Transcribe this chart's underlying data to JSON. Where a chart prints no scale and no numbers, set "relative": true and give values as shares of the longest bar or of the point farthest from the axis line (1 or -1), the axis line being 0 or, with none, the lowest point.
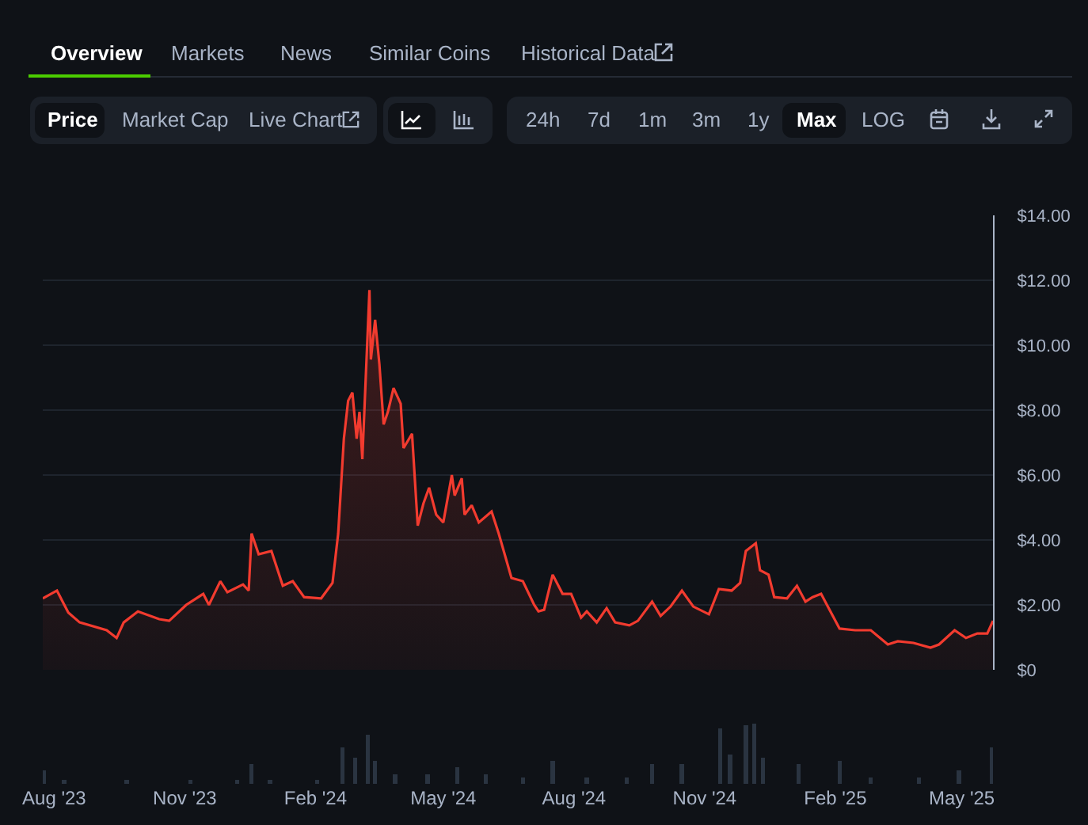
{
  "chart_data": [
    {
      "type": "area",
      "annotations": [
        "Overview",
        "Markets",
        "News",
        "Similar Coins",
        "Historical Data",
        "Price",
        "Market Cap",
        "Live Chart",
        "24h",
        "7d",
        "1m",
        "3m",
        "1y",
        "Max",
        "LOG"
      ],
      "x": [
        "2023-07-24",
        "2023-08-03",
        "2023-08-11",
        "2023-08-19",
        "2023-09-07",
        "2023-09-14",
        "2023-09-19",
        "2023-09-29",
        "2023-10-14",
        "2023-10-21",
        "2023-11-02",
        "2023-11-14",
        "2023-11-18",
        "2023-11-26",
        "2023-12-01",
        "2023-12-12",
        "2023-12-16",
        "2023-12-18",
        "2023-12-23",
        "2024-01-01",
        "2024-01-09",
        "2024-01-16",
        "2024-01-24",
        "2024-02-05",
        "2024-02-13",
        "2024-02-17",
        "2024-02-21",
        "2024-02-24",
        "2024-02-27",
        "2024-03-01",
        "2024-03-03",
        "2024-03-05",
        "2024-03-10",
        "2024-03-11",
        "2024-03-14",
        "2024-03-17",
        "2024-03-20",
        "2024-03-23",
        "2024-03-27",
        "2024-04-01",
        "2024-04-03",
        "2024-04-09",
        "2024-04-13",
        "2024-04-17",
        "2024-04-21",
        "2024-04-26",
        "2024-05-01",
        "2024-05-07",
        "2024-05-09",
        "2024-05-14",
        "2024-05-16",
        "2024-05-21",
        "2024-05-26",
        "2024-06-04",
        "2024-06-09",
        "2024-06-18",
        "2024-06-26",
        "2024-07-04",
        "2024-07-07",
        "2024-07-11",
        "2024-07-17",
        "2024-07-24",
        "2024-07-30",
        "2024-08-06",
        "2024-08-10",
        "2024-08-17",
        "2024-08-24",
        "2024-08-30",
        "2024-09-09",
        "2024-09-15",
        "2024-09-25",
        "2024-10-01",
        "2024-10-08",
        "2024-10-16",
        "2024-10-24",
        "2024-11-04",
        "2024-11-11",
        "2024-11-20",
        "2024-11-26",
        "2024-11-30",
        "2024-12-07",
        "2024-12-10",
        "2024-12-16",
        "2024-12-20",
        "2024-12-29",
        "2025-01-05",
        "2025-01-11",
        "2025-01-16",
        "2025-01-22",
        "2025-01-29",
        "2025-02-04",
        "2025-02-15",
        "2025-02-26",
        "2025-03-10",
        "2025-03-17",
        "2025-03-28",
        "2025-04-09",
        "2025-04-15",
        "2025-04-26",
        "2025-05-04",
        "2025-05-12",
        "2025-05-19",
        "2025-05-23"
      ],
      "color": "#f23b2f",
      "values": [
        2.2,
        2.44,
        1.76,
        1.46,
        1.22,
        0.98,
        1.46,
        1.8,
        1.56,
        1.51,
        2.0,
        2.34,
        2.0,
        2.73,
        2.39,
        2.63,
        2.44,
        4.2,
        3.56,
        3.66,
        2.59,
        2.73,
        2.24,
        2.2,
        2.68,
        4.2,
        7.12,
        8.29,
        8.54,
        7.12,
        7.95,
        6.49,
        11.7,
        9.56,
        10.78,
        9.41,
        7.56,
        7.95,
        8.68,
        8.2,
        6.83,
        7.27,
        4.44,
        5.12,
        5.61,
        4.78,
        4.54,
        6.0,
        5.37,
        5.9,
        4.78,
        5.07,
        4.54,
        4.88,
        4.2,
        2.83,
        2.73,
        2.0,
        1.8,
        1.85,
        2.93,
        2.34,
        2.34,
        1.61,
        1.8,
        1.46,
        1.9,
        1.46,
        1.37,
        1.51,
        2.1,
        1.66,
        1.95,
        2.44,
        1.95,
        1.71,
        2.49,
        2.44,
        2.68,
        3.66,
        3.9,
        3.07,
        2.93,
        2.24,
        2.2,
        2.59,
        2.1,
        2.24,
        2.34,
        1.76,
        1.27,
        1.22,
        1.22,
        0.78,
        0.88,
        0.83,
        0.68,
        0.78,
        1.22,
        0.98,
        1.12,
        1.12,
        1.51
      ],
      "xlim": [
        "2023-07-24",
        "2025-05-23"
      ],
      "ylim": [
        0,
        14
      ],
      "yticks": [
        {
          "value": 0,
          "label": "$0"
        },
        {
          "value": 2,
          "label": "$2.00"
        },
        {
          "value": 4,
          "label": "$4.00"
        },
        {
          "value": 6,
          "label": "$6.00"
        },
        {
          "value": 8,
          "label": "$8.00"
        },
        {
          "value": 10,
          "label": "$10.00"
        },
        {
          "value": 12,
          "label": "$12.00"
        },
        {
          "value": 14,
          "label": "$14.00"
        }
      ],
      "grid": "y",
      "tick_labels": "y"
    },
    {
      "type": "bar",
      "relative": true,
      "color": "#2a3441",
      "x": [
        "2023-07-25",
        "2023-08-08",
        "2023-09-21",
        "2023-11-05",
        "2023-12-08",
        "2023-12-18",
        "2023-12-31",
        "2024-02-02",
        "2024-02-20",
        "2024-02-29",
        "2024-03-09",
        "2024-03-14",
        "2024-03-28",
        "2024-04-20",
        "2024-05-11",
        "2024-05-31",
        "2024-06-26",
        "2024-07-17",
        "2024-08-10",
        "2024-09-07",
        "2024-09-25",
        "2024-10-16",
        "2024-11-12",
        "2024-11-19",
        "2024-11-30",
        "2024-12-06",
        "2024-12-12",
        "2025-01-06",
        "2025-02-04",
        "2025-02-26",
        "2025-04-01",
        "2025-04-29",
        "2025-05-22"
      ],
      "values": [
        0.22,
        0.06,
        0.06,
        0.06,
        0.06,
        0.33,
        0.06,
        0.06,
        0.6,
        0.43,
        0.82,
        0.38,
        0.16,
        0.16,
        0.27,
        0.16,
        0.11,
        0.38,
        0.11,
        0.11,
        0.33,
        0.33,
        0.92,
        0.49,
        0.98,
        1,
        0.43,
        0.33,
        0.38,
        0.11,
        0.11,
        0.22,
        0.6
      ],
      "xlim": [
        "2023-07-24",
        "2025-05-23"
      ],
      "xticks": [
        {
          "value": "2023-08-01",
          "label": "Aug '23"
        },
        {
          "value": "2023-11-01",
          "label": "Nov '23"
        },
        {
          "value": "2024-02-01",
          "label": "Feb '24"
        },
        {
          "value": "2024-05-01",
          "label": "May '24"
        },
        {
          "value": "2024-08-01",
          "label": "Aug '24"
        },
        {
          "value": "2024-11-01",
          "label": "Nov '24"
        },
        {
          "value": "2025-02-01",
          "label": "Feb '25"
        },
        {
          "value": "2025-05-01",
          "label": "May '25"
        }
      ],
      "tick_labels": "x"
    }
  ]
}
